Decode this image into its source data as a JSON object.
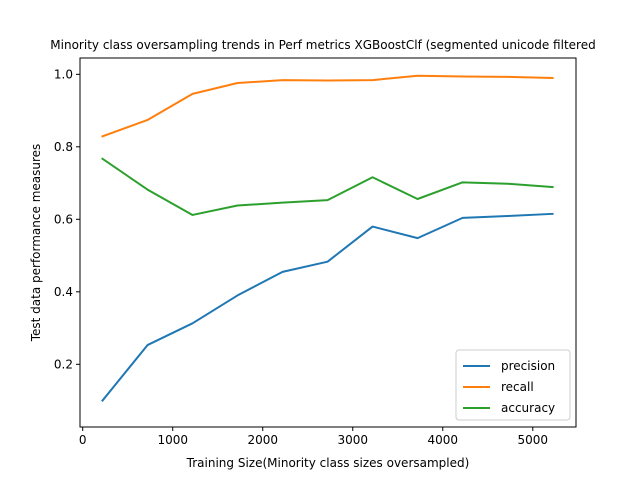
{
  "chart_data": {
    "type": "line",
    "title": "Minority class oversampling trends in Perf metrics XGBoostClf (segmented unicode filtered",
    "xlabel": "Training Size(Minority class sizes oversampled)",
    "ylabel": "Test data performance measures",
    "xlim": [
      -30,
      5480
    ],
    "ylim": [
      0.027,
      1.045
    ],
    "xticks": [
      0,
      1000,
      2000,
      3000,
      4000,
      5000
    ],
    "xtick_labels": [
      "0",
      "1000",
      "2000",
      "3000",
      "4000",
      "5000"
    ],
    "yticks": [
      0.2,
      0.4,
      0.6,
      0.8,
      1.0
    ],
    "ytick_labels": [
      "0.2",
      "0.4",
      "0.6",
      "0.8",
      "1.0"
    ],
    "grid": false,
    "legend_position": "lower right",
    "x": [
      220,
      720,
      1220,
      1720,
      2220,
      2720,
      3220,
      3720,
      4220,
      4720,
      5220
    ],
    "series": [
      {
        "name": "precision",
        "color": "#1f77b4",
        "values": [
          0.1,
          0.253,
          0.313,
          0.39,
          0.455,
          0.483,
          0.58,
          0.548,
          0.604,
          0.609,
          0.615
        ]
      },
      {
        "name": "recall",
        "color": "#ff7f0e",
        "values": [
          0.829,
          0.874,
          0.946,
          0.976,
          0.984,
          0.983,
          0.984,
          0.996,
          0.994,
          0.993,
          0.99
        ]
      },
      {
        "name": "accuracy",
        "color": "#2ca02c",
        "values": [
          0.767,
          0.682,
          0.612,
          0.638,
          0.646,
          0.653,
          0.716,
          0.656,
          0.702,
          0.698,
          0.689
        ]
      }
    ]
  }
}
